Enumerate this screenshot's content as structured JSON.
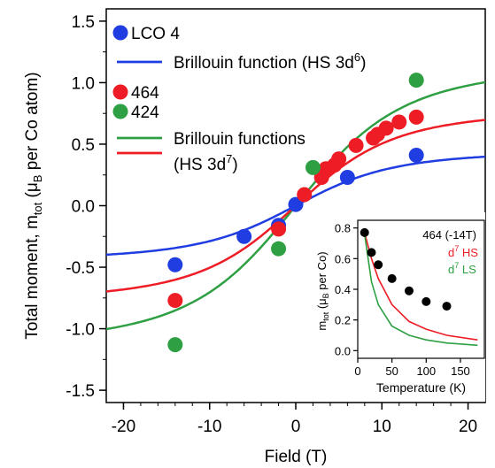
{
  "chart_data": [
    {
      "id": "main",
      "type": "scatter",
      "xlabel": "Field (T)",
      "ylabel_main": "Total moment, m",
      "ylabel_sub": "tot",
      "ylabel_paren_open": " (μ",
      "ylabel_paren_sub": "B",
      "ylabel_tail": " per Co atom)",
      "xlim": [
        -22,
        22
      ],
      "ylim": [
        -1.6,
        1.6
      ],
      "xticks": [
        -20,
        -10,
        0,
        10,
        20
      ],
      "xtick_labels": [
        "-20",
        "-10",
        "0",
        "10",
        "20"
      ],
      "yticks": [
        -1.5,
        -1.0,
        -0.5,
        0.0,
        0.5,
        1.0,
        1.5
      ],
      "ytick_labels": [
        "-1.5",
        "-1.0",
        "-0.5",
        "0.0",
        "0.5",
        "1.0",
        "1.5"
      ],
      "grid": false,
      "series": [
        {
          "name": "LCO 4",
          "kind": "points",
          "color": "#1f3de0",
          "x": [
            -14,
            -6,
            -2,
            0,
            6,
            14
          ],
          "y": [
            -0.48,
            -0.25,
            -0.16,
            0.01,
            0.23,
            0.41
          ]
        },
        {
          "name": "464",
          "kind": "points",
          "color": "#ee1c25",
          "x": [
            -14,
            -2,
            1,
            3,
            3.5,
            4.5,
            5,
            7,
            9,
            9.5,
            10.5,
            12,
            14
          ],
          "y": [
            -0.77,
            -0.19,
            0.09,
            0.23,
            0.3,
            0.33,
            0.38,
            0.49,
            0.55,
            0.58,
            0.63,
            0.68,
            0.72
          ]
        },
        {
          "name": "424",
          "kind": "points",
          "color": "#2ea043",
          "x": [
            -14,
            -2,
            2,
            14
          ],
          "y": [
            -1.13,
            -0.35,
            0.31,
            1.02
          ]
        },
        {
          "name": "Brillouin function (HS 3d",
          "name_sup": "6",
          "name_tail": ")",
          "kind": "line",
          "color": "#1f3de0",
          "saturation": 0.44,
          "scale": 6.0
        },
        {
          "name": "Brillouin functions",
          "name2": "(HS 3d",
          "name2_sup": "7",
          "name2_tail": ")",
          "kind": "line",
          "color": "#2ea043",
          "saturation": 1.13,
          "scale": 6.5
        },
        {
          "kind": "line",
          "color": "#ee1c25",
          "saturation": 0.77,
          "scale": 6.0
        }
      ],
      "legend": [
        {
          "label": "LCO 4",
          "type": "marker",
          "color": "#1f3de0"
        },
        {
          "label": "Brillouin function (HS 3d",
          "sup": "6",
          "tail": ")",
          "type": "line",
          "color": "#1f3de0"
        },
        {
          "label": "464",
          "type": "marker",
          "color": "#ee1c25"
        },
        {
          "label": "424",
          "type": "marker",
          "color": "#2ea043"
        },
        {
          "label": "Brillouin functions",
          "type": "line",
          "color": "#2ea043"
        },
        {
          "label": "(HS 3d",
          "sup": "7",
          "tail": ")",
          "type": "line",
          "color": "#ee1c25"
        }
      ]
    },
    {
      "id": "inset",
      "type": "line",
      "xlabel": "Temperature (K)",
      "ylabel_main": "m",
      "ylabel_sub": "tot",
      "ylabel_paren_open": " (μ",
      "ylabel_paren_sub": "B",
      "ylabel_tail": " per Co)",
      "xlim": [
        0,
        185
      ],
      "ylim": [
        -0.05,
        0.85
      ],
      "xticks": [
        0,
        50,
        100,
        150
      ],
      "xtick_labels": [
        "0",
        "50",
        "100",
        "150"
      ],
      "yticks": [
        0.0,
        0.2,
        0.4,
        0.6,
        0.8
      ],
      "ytick_labels": [
        "0.0",
        "0.2",
        "0.4",
        "0.6",
        "0.8"
      ],
      "series": [
        {
          "name": "464 (-14T)",
          "kind": "points",
          "color": "#000000",
          "x": [
            10,
            20,
            30,
            50,
            75,
            100,
            130
          ],
          "y": [
            0.77,
            0.64,
            0.56,
            0.47,
            0.39,
            0.32,
            0.29
          ]
        },
        {
          "name": "d",
          "name_sup": "7",
          "name_tail": " HS",
          "kind": "line",
          "color": "#ee1c25",
          "x": [
            10,
            20,
            30,
            50,
            75,
            100,
            130,
            175
          ],
          "y": [
            0.77,
            0.6,
            0.47,
            0.3,
            0.19,
            0.14,
            0.1,
            0.07
          ]
        },
        {
          "name": "d",
          "name_sup": "7",
          "name_tail": " LS",
          "kind": "line",
          "color": "#2ea043",
          "x": [
            10,
            20,
            30,
            50,
            75,
            100,
            130,
            175
          ],
          "y": [
            0.76,
            0.45,
            0.3,
            0.16,
            0.1,
            0.07,
            0.05,
            0.035
          ]
        }
      ]
    }
  ]
}
